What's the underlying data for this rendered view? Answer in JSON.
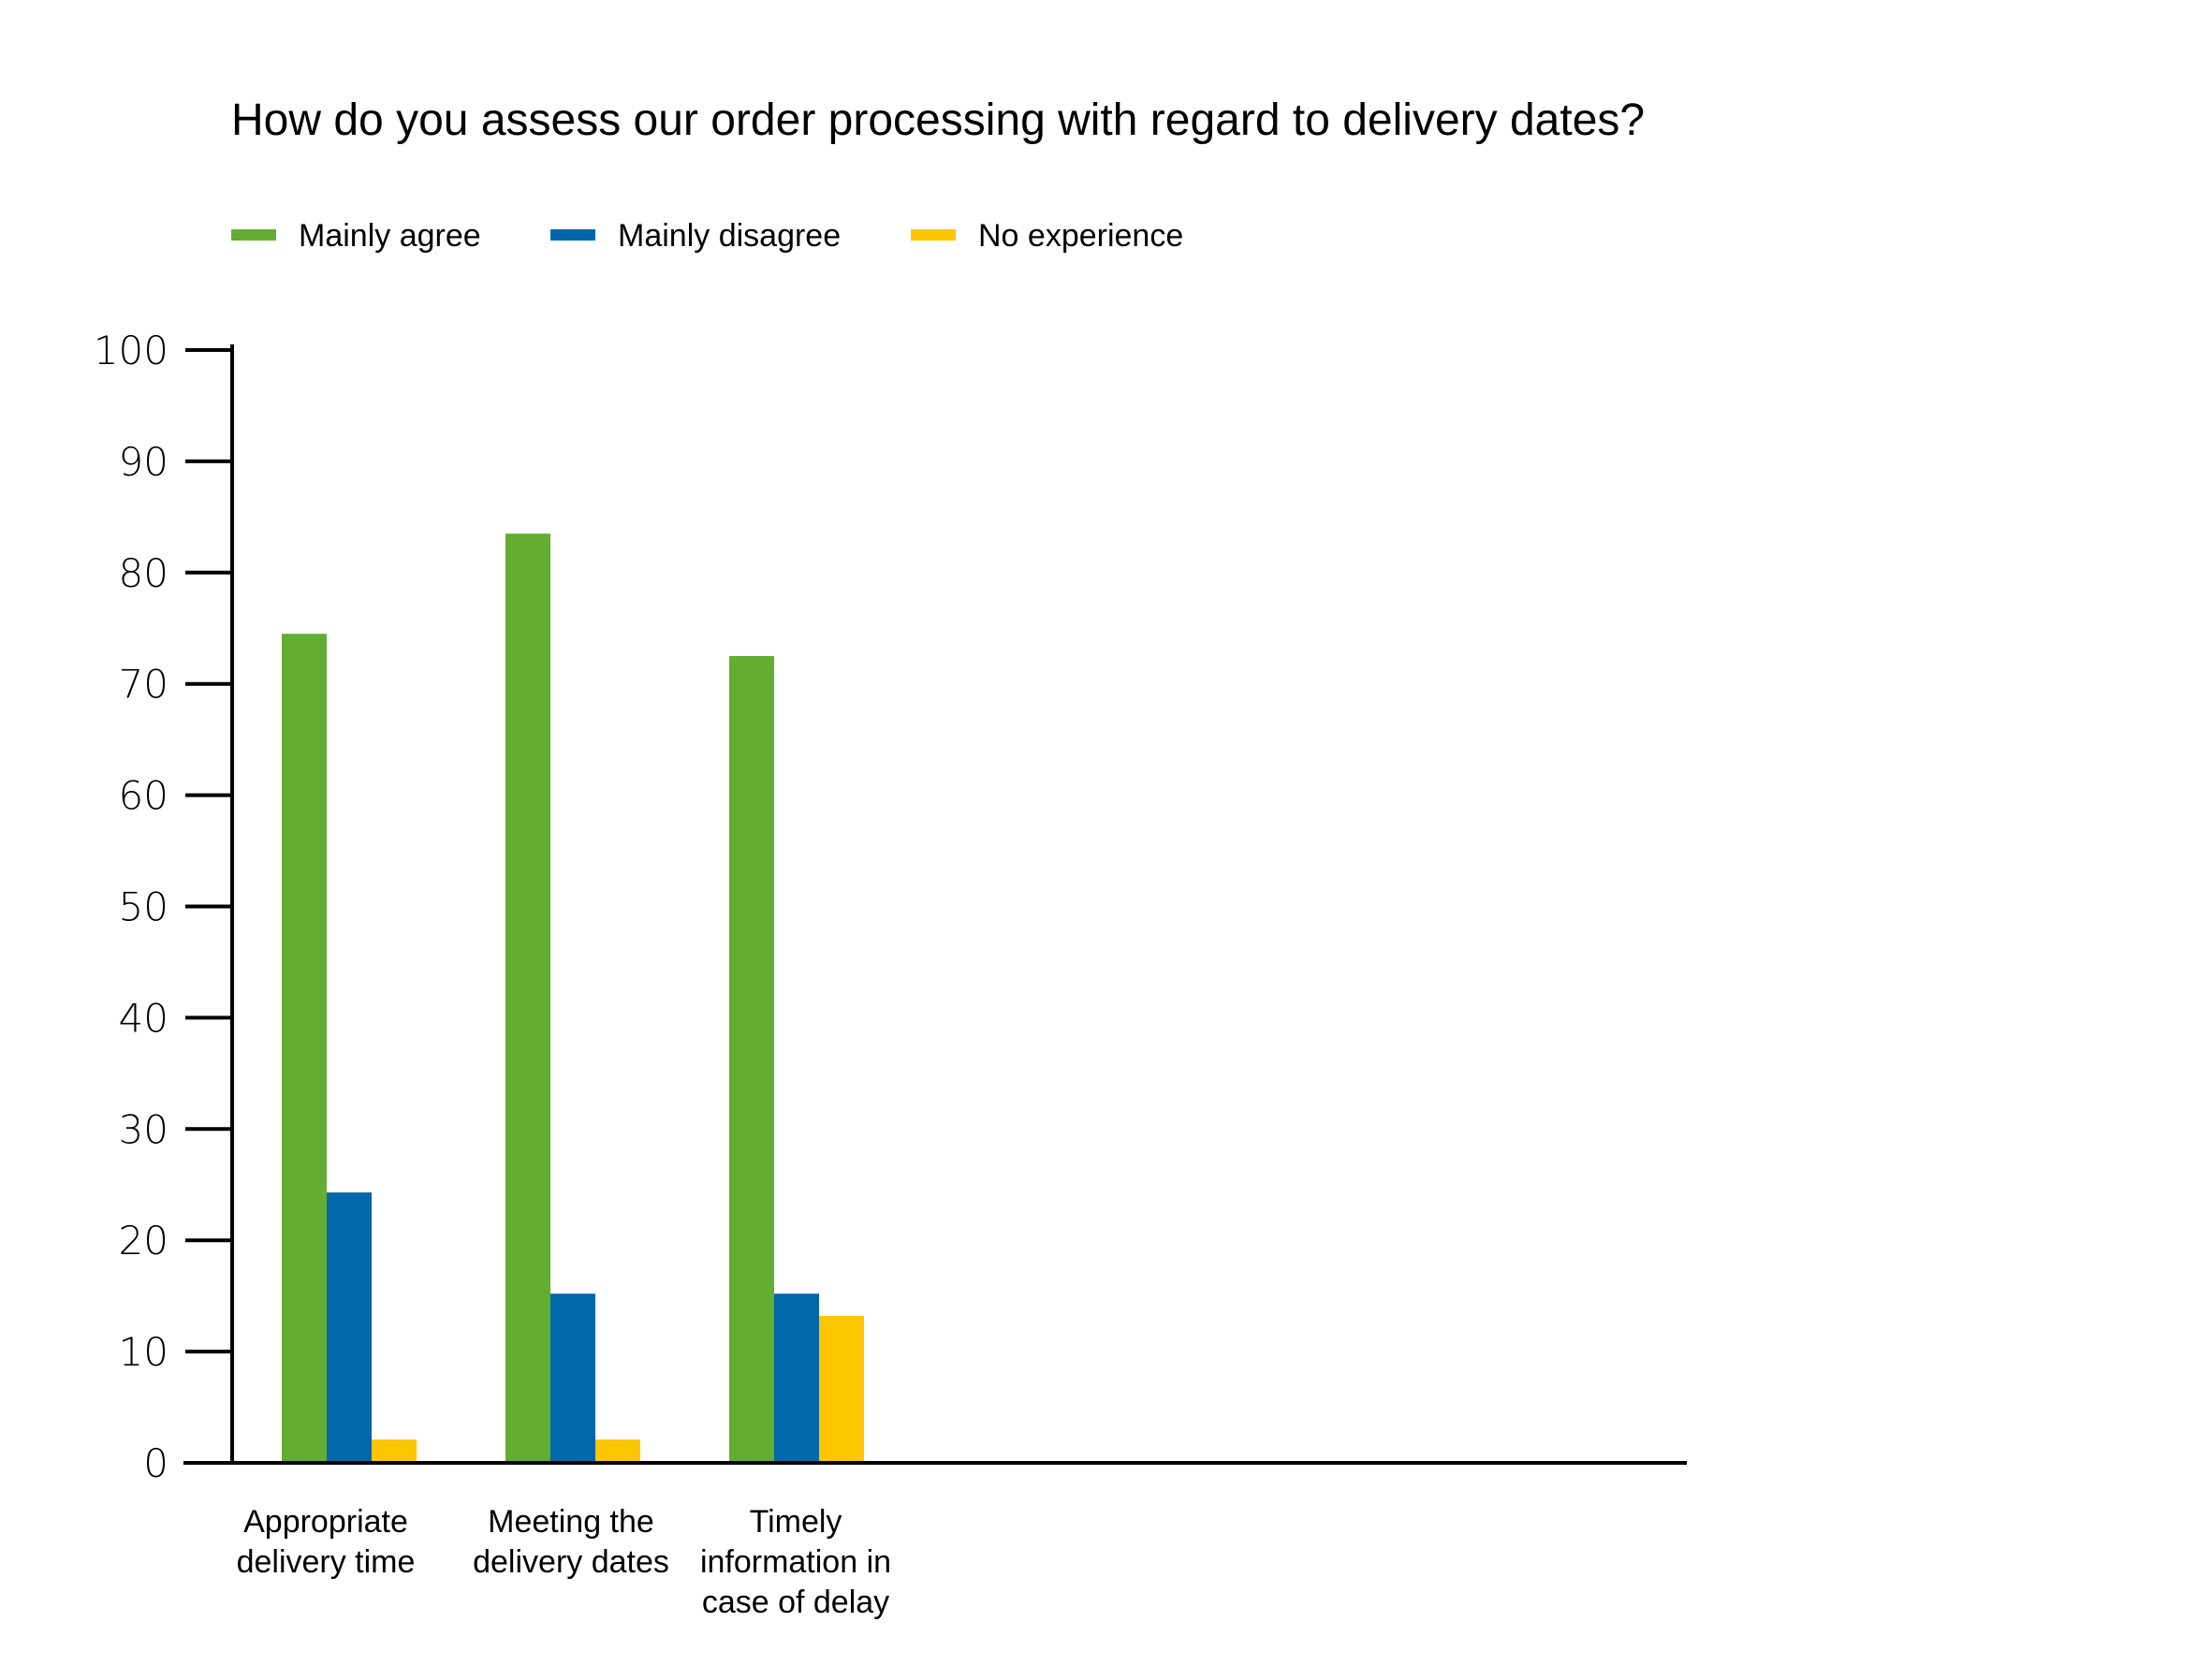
{
  "chart_data": {
    "type": "bar",
    "title": "How do you assess our order processing with regard to delivery dates?",
    "categories": [
      [
        "Appropriate",
        "delivery time"
      ],
      [
        "Meeting the",
        "delivery dates"
      ],
      [
        "Timely",
        "information in",
        "case of delay"
      ]
    ],
    "series": [
      {
        "name": "Mainly agree",
        "color": "#63ad32",
        "values": [
          74.5,
          83.5,
          72.5
        ]
      },
      {
        "name": "Mainly disagree",
        "color": "#0067a9",
        "values": [
          24.3,
          15.2,
          15.2
        ]
      },
      {
        "name": "No experience",
        "color": "#fcc600",
        "values": [
          2.1,
          2.1,
          13.2
        ]
      }
    ],
    "ylim": [
      0,
      100
    ],
    "yticks": [
      0,
      10,
      20,
      30,
      40,
      50,
      60,
      70,
      80,
      90,
      100
    ],
    "xlabel": "",
    "ylabel": "",
    "grid": false,
    "legend_position": "top-left"
  }
}
